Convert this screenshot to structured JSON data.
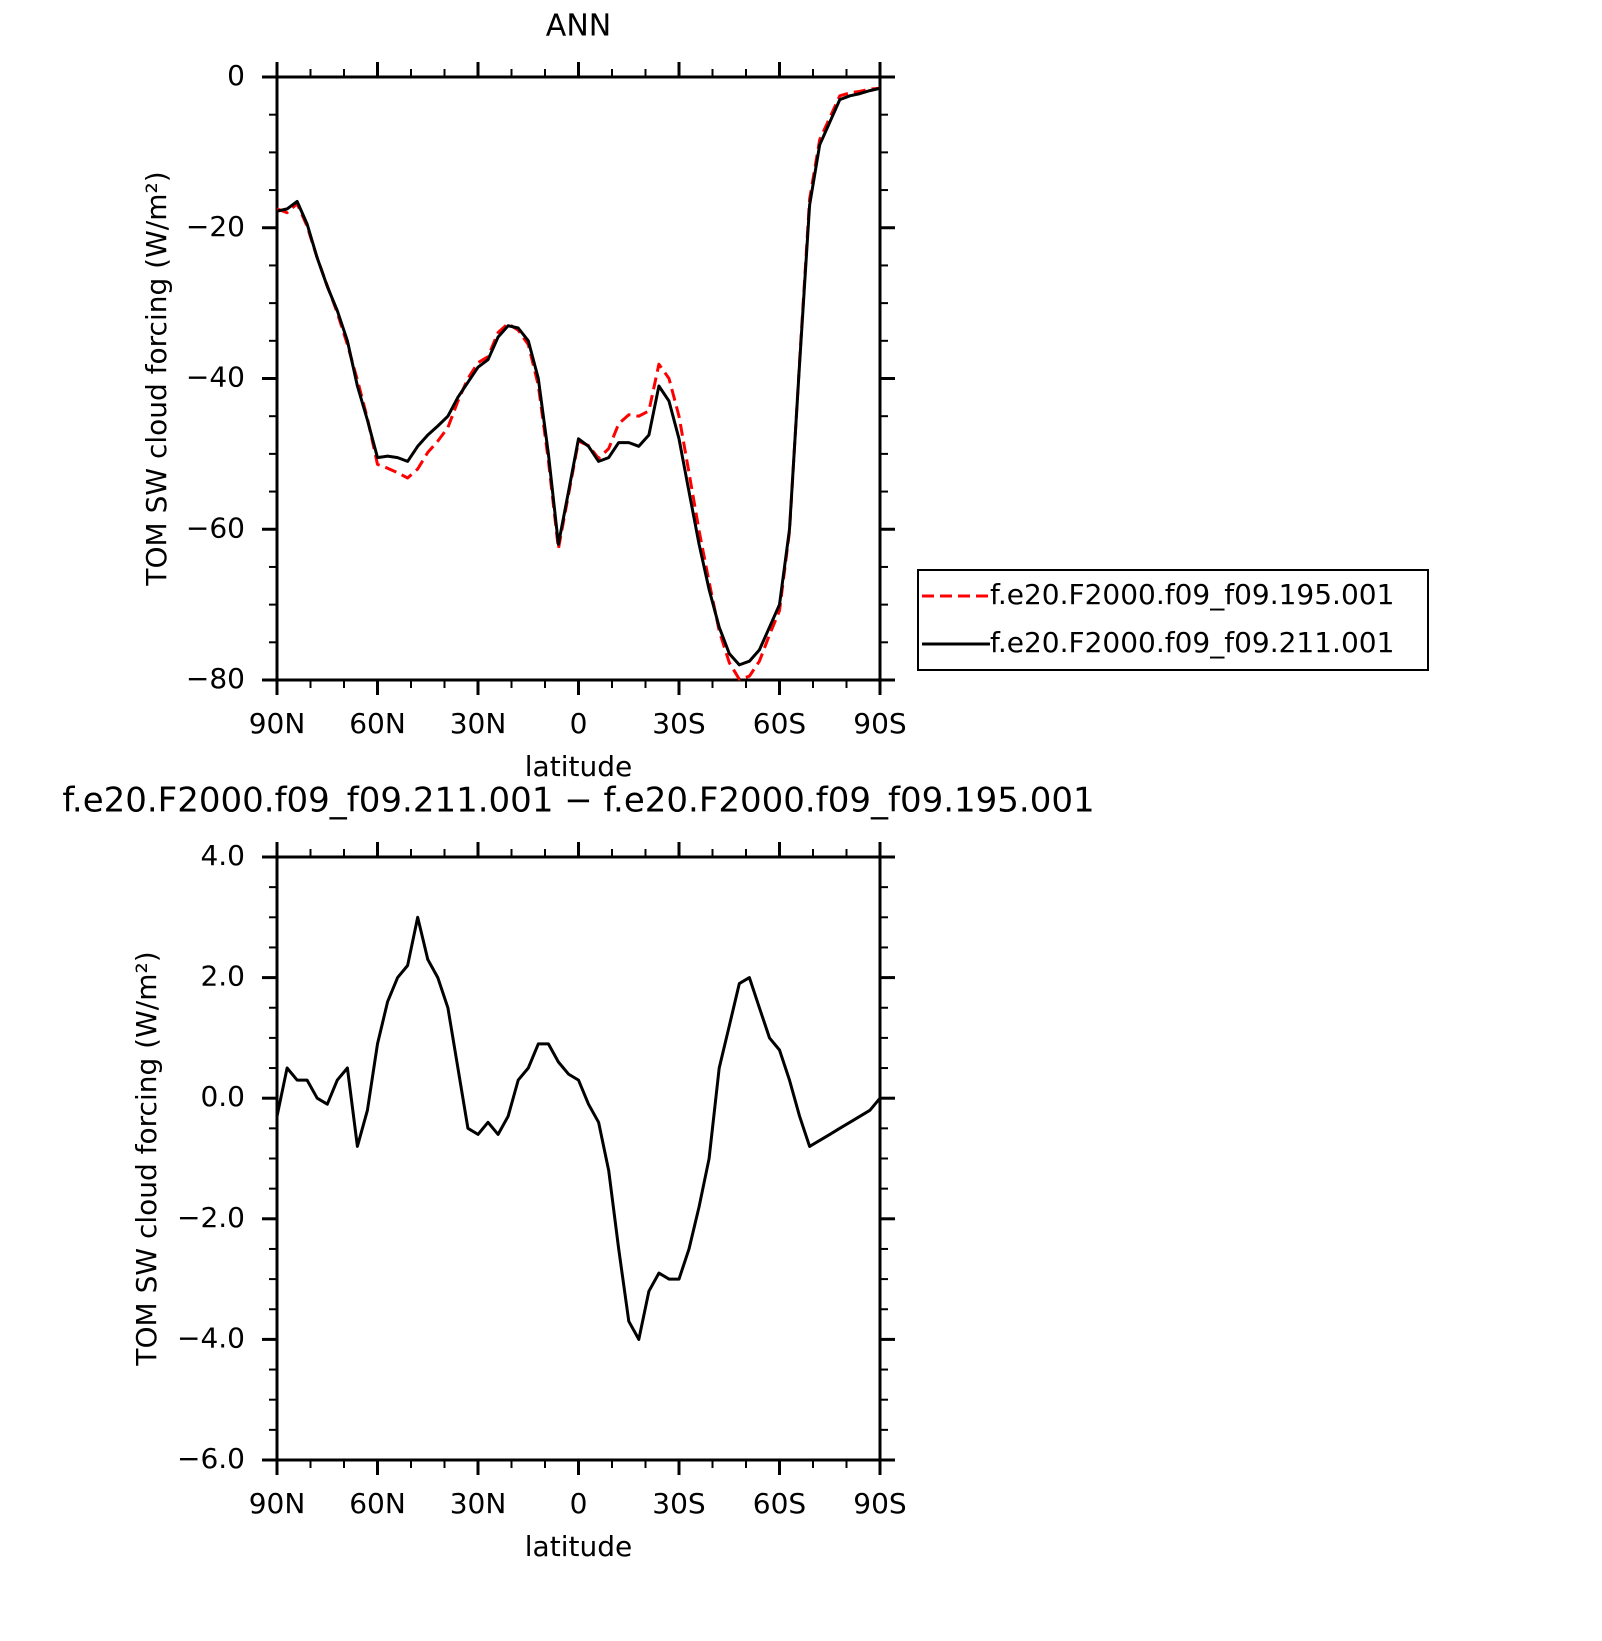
{
  "chart_data": [
    {
      "type": "line",
      "title": "ANN",
      "xlabel": "latitude",
      "ylabel": "TOM SW cloud forcing (W/m²)",
      "x": [
        90,
        87,
        84,
        81,
        78,
        75,
        72,
        69,
        66,
        63,
        60,
        57,
        54,
        51,
        48,
        45,
        42,
        39,
        36,
        33,
        30,
        27,
        24,
        21,
        18,
        15,
        12,
        9,
        6,
        3,
        0,
        -3,
        -6,
        -9,
        -12,
        -15,
        -18,
        -21,
        -24,
        -27,
        -30,
        -33,
        -36,
        -39,
        -42,
        -45,
        -48,
        -51,
        -54,
        -57,
        -60,
        -63,
        -66,
        -69,
        -72,
        -75,
        -78,
        -81,
        -84,
        -87,
        -90
      ],
      "xlim": [
        90,
        -90
      ],
      "xticks": [
        {
          "value": 90,
          "label": "90N"
        },
        {
          "value": 60,
          "label": "60N"
        },
        {
          "value": 30,
          "label": "30N"
        },
        0,
        {
          "value": -30,
          "label": "30S"
        },
        {
          "value": -60,
          "label": "60S"
        },
        {
          "value": -90,
          "label": "90S"
        }
      ],
      "ylim": [
        -80,
        0
      ],
      "yticks": [
        0,
        {
          "value": -20,
          "label": "−20"
        },
        {
          "value": -40,
          "label": "−40"
        },
        {
          "value": -60,
          "label": "−60"
        },
        {
          "value": -80,
          "label": "−80"
        }
      ],
      "legend": "right",
      "series": [
        {
          "name": "f.e20.F2000.f09_f09.195.001",
          "color": "#ff0000",
          "style": "dashed",
          "values": [
            -17.5,
            -18.0,
            -16.8,
            -19.8,
            -24.0,
            -27.7,
            -31.3,
            -35.5,
            -40.2,
            -45.3,
            -51.4,
            -51.9,
            -52.5,
            -53.2,
            -52.0,
            -49.8,
            -48.3,
            -46.5,
            -43.0,
            -40.0,
            -37.9,
            -37.1,
            -33.9,
            -32.7,
            -33.6,
            -35.5,
            -40.9,
            -50.9,
            -62.6,
            -55.4,
            -48.3,
            -48.9,
            -50.6,
            -49.3,
            -46.0,
            -44.8,
            -45.0,
            -44.3,
            -38.1,
            -40.0,
            -45.0,
            -52.5,
            -60.2,
            -67.0,
            -73.5,
            -77.7,
            -79.9,
            -79.5,
            -77.5,
            -74.0,
            -70.8,
            -60.3,
            -37.7,
            -16.2,
            -8.3,
            -5.4,
            -2.5,
            -2.1,
            -1.9,
            -1.6,
            -1.5
          ]
        },
        {
          "name": "f.e20.F2000.f09_f09.211.001",
          "color": "#000000",
          "style": "solid",
          "values": [
            -17.8,
            -17.5,
            -16.5,
            -19.5,
            -24,
            -27.8,
            -31,
            -35,
            -41,
            -45.5,
            -50.5,
            -50.3,
            -50.5,
            -51,
            -49,
            -47.5,
            -46.3,
            -45,
            -42.5,
            -40.5,
            -38.5,
            -37.5,
            -34.5,
            -33,
            -33.3,
            -35,
            -40,
            -50,
            -62,
            -55,
            -48,
            -49,
            -51,
            -50.5,
            -48.5,
            -48.5,
            -49,
            -47.5,
            -41,
            -43,
            -48,
            -55,
            -62,
            -68,
            -73,
            -76.5,
            -78,
            -77.5,
            -76,
            -73,
            -70,
            -60,
            -38,
            -17,
            -9,
            -6,
            -3,
            -2.5,
            -2.2,
            -1.8,
            -1.5
          ]
        }
      ]
    },
    {
      "type": "line",
      "title": "f.e20.F2000.f09_f09.211.001 − f.e20.F2000.f09_f09.195.001",
      "xlabel": "latitude",
      "ylabel": "TOM SW cloud forcing (W/m²)",
      "x": [
        90,
        87,
        84,
        81,
        78,
        75,
        72,
        69,
        66,
        63,
        60,
        57,
        54,
        51,
        48,
        45,
        42,
        39,
        36,
        33,
        30,
        27,
        24,
        21,
        18,
        15,
        12,
        9,
        6,
        3,
        0,
        -3,
        -6,
        -9,
        -12,
        -15,
        -18,
        -21,
        -24,
        -27,
        -30,
        -33,
        -36,
        -39,
        -42,
        -45,
        -48,
        -51,
        -54,
        -57,
        -60,
        -63,
        -66,
        -69,
        -72,
        -75,
        -78,
        -81,
        -84,
        -87,
        -90
      ],
      "xlim": [
        90,
        -90
      ],
      "xticks": [
        {
          "value": 90,
          "label": "90N"
        },
        {
          "value": 60,
          "label": "60N"
        },
        {
          "value": 30,
          "label": "30N"
        },
        0,
        {
          "value": -30,
          "label": "30S"
        },
        {
          "value": -60,
          "label": "60S"
        },
        {
          "value": -90,
          "label": "90S"
        }
      ],
      "ylim": [
        -6,
        4
      ],
      "yticks": [
        {
          "value": 4,
          "label": "4.0"
        },
        {
          "value": 2,
          "label": "2.0"
        },
        {
          "value": 0,
          "label": "0.0"
        },
        {
          "value": -2,
          "label": "−2.0"
        },
        {
          "value": -4,
          "label": "−4.0"
        },
        {
          "value": -6,
          "label": "−6.0"
        }
      ],
      "color": "#000000",
      "values": [
        -0.3,
        0.5,
        0.3,
        0.3,
        0.0,
        -0.1,
        0.3,
        0.5,
        -0.8,
        -0.2,
        0.9,
        1.6,
        2.0,
        2.2,
        3.0,
        2.3,
        2.0,
        1.5,
        0.5,
        -0.5,
        -0.6,
        -0.4,
        -0.6,
        -0.3,
        0.3,
        0.5,
        0.9,
        0.9,
        0.6,
        0.4,
        0.3,
        -0.1,
        -0.4,
        -1.2,
        -2.5,
        -3.7,
        -4.0,
        -3.2,
        -2.9,
        -3.0,
        -3.0,
        -2.5,
        -1.8,
        -1.0,
        0.5,
        1.2,
        1.9,
        2.0,
        1.5,
        1.0,
        0.8,
        0.3,
        -0.3,
        -0.8,
        -0.7,
        -0.6,
        -0.5,
        -0.4,
        -0.3,
        -0.2,
        0.0
      ]
    }
  ]
}
